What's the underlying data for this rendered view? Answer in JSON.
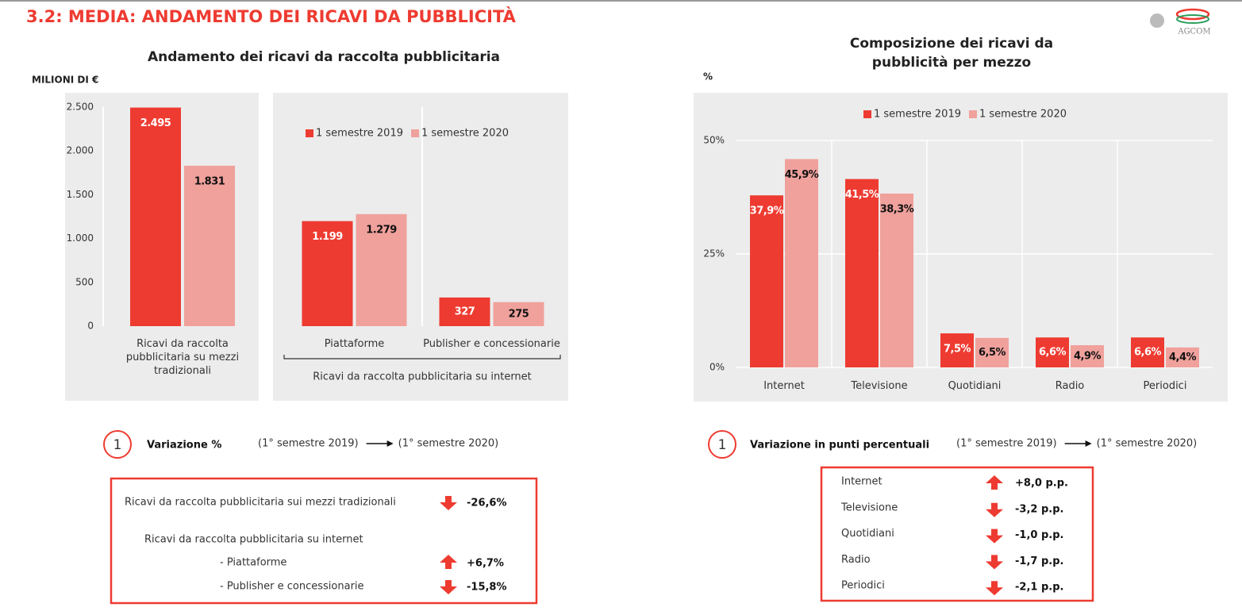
{
  "title": "3.2: MEDIA: ANDAMENTO DEI RICAVI DA PUBBLICITÀ",
  "logo": "AGCOM",
  "chart_data": [
    {
      "type": "bar",
      "title": "Andamento dei ricavi da raccolta pubblicitaria",
      "y_label": "MILIONI DI €",
      "categories": [
        "Ricavi da raccolta pubblicitaria su mezzi tradizionali",
        "Piattaforme",
        "Publisher e concessionarie"
      ],
      "group_label": "Ricavi da raccolta pubblicitaria su internet",
      "series": [
        {
          "name": "1 semestre 2019",
          "color": "#ee3b31",
          "values": [
            2495,
            1199,
            327
          ],
          "value_labels": [
            "2.495",
            "1.199",
            "327"
          ]
        },
        {
          "name": "1 semestre 2020",
          "color": "#f0a19c",
          "values": [
            1831,
            1279,
            275
          ],
          "value_labels": [
            "1.831",
            "1.279",
            "275"
          ]
        }
      ],
      "ylim": [
        0,
        2500
      ],
      "yticks": [
        0,
        500,
        {
          "value": 1000,
          "label": "1.000"
        },
        {
          "value": 1500,
          "label": "1.500"
        },
        {
          "value": 2000,
          "label": "2.000"
        },
        {
          "value": 2500,
          "label": "2.500"
        }
      ],
      "grid": false
    },
    {
      "type": "bar",
      "title": "Composizione dei ricavi da pubblicità per mezzo",
      "y_label": "%",
      "categories": [
        "Internet",
        "Televisione",
        "Quotidiani",
        "Radio",
        "Periodici"
      ],
      "series": [
        {
          "name": "1 semestre 2019",
          "color": "#ee3b31",
          "values": [
            37.9,
            41.5,
            7.5,
            6.6,
            6.6
          ],
          "value_labels": [
            "37,9%",
            "41,5%",
            "7,5%",
            "6,6%",
            "6,6%"
          ]
        },
        {
          "name": "1 semestre 2020",
          "color": "#f0a19c",
          "values": [
            45.9,
            38.3,
            6.5,
            4.9,
            4.4
          ],
          "value_labels": [
            "45,9%",
            "38,3%",
            "6,5%",
            "4,9%",
            "4,4%"
          ]
        }
      ],
      "ylim": [
        0,
        50
      ],
      "yticks": [
        {
          "value": 0,
          "label": "0%"
        },
        {
          "value": 25,
          "label": "25%"
        },
        {
          "value": 50,
          "label": "50%"
        }
      ],
      "grid": true
    }
  ],
  "variation_left": {
    "marker": "1",
    "title": "Variazione %",
    "period_from": "(1° semestre 2019)",
    "period_to": "(1° semestre 2020)",
    "rows": [
      {
        "label": "Ricavi da raccolta pubblicitaria sui mezzi tradizionali",
        "value": "-26,6%"
      },
      {
        "label": "Ricavi da raccolta pubblicitaria su internet"
      },
      {
        "label": "- Piattaforme",
        "value": "+6,7%"
      },
      {
        "label": "- Publisher e concessionarie",
        "value": "-15,8%"
      }
    ]
  },
  "variation_right": {
    "marker": "1",
    "title": "Variazione in punti percentuali",
    "period_from": "(1° semestre 2019)",
    "period_to": "(1° semestre 2020)",
    "rows": [
      {
        "label": "Internet",
        "value": "+8,0 p.p."
      },
      {
        "label": "Televisione",
        "value": "-3,2 p.p."
      },
      {
        "label": "Quotidiani",
        "value": "-1,0 p.p."
      },
      {
        "label": "Radio",
        "value": "-1,7 p.p."
      },
      {
        "label": "Periodici",
        "value": "-2,1 p.p."
      }
    ]
  }
}
